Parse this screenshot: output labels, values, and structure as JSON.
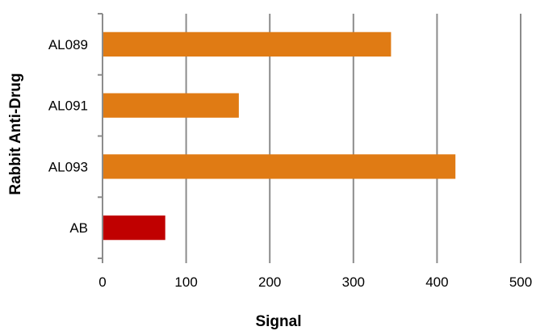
{
  "chart_data": {
    "type": "bar",
    "orientation": "horizontal",
    "xlabel": "Signal",
    "ylabel": "Rabbit Anti-Drug",
    "categories": [
      "AL089",
      "AL091",
      "AL093",
      "AB"
    ],
    "values": [
      345,
      163,
      422,
      75
    ],
    "colors": [
      "#E07B14",
      "#E07B14",
      "#E07B14",
      "#C00000"
    ],
    "xlim": [
      0,
      500
    ],
    "xticks": [
      0,
      100,
      200,
      300,
      400,
      500
    ],
    "grid": "vertical",
    "legend": "none"
  }
}
